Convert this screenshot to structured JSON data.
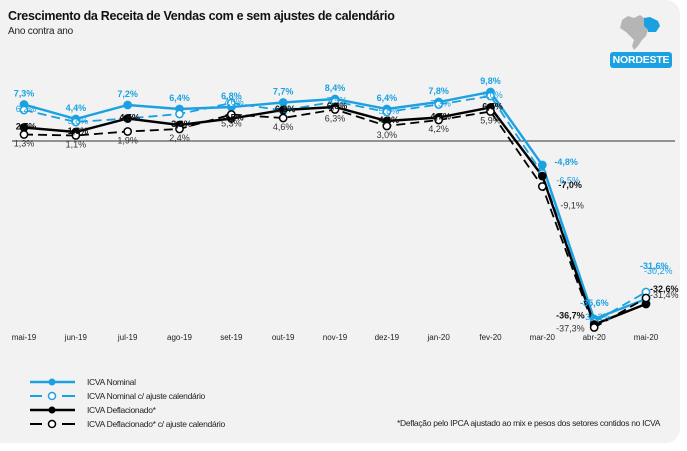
{
  "header": {
    "title": "Crescimento da Receita de Vendas com e sem ajustes de calendário",
    "subtitle": "Ano contra ano",
    "region_badge": "NORDESTE",
    "map_icon": "brazil-map-icon"
  },
  "colors": {
    "nominal": "#1ba1e2",
    "deflated": "#000000",
    "panel_bg": "#f2f2f2",
    "badge_bg": "#1ba1e2",
    "map_gray": "#b5b5b5"
  },
  "chart_data": {
    "type": "line",
    "title": "Crescimento da Receita de Vendas com e sem ajustes de calendário",
    "subtitle": "Ano contra ano",
    "xlabel": "",
    "ylabel": "",
    "grid": false,
    "zero_line": true,
    "legend_placement": "bottom-left",
    "ylim": [
      -40,
      12
    ],
    "categories": [
      "mai-19",
      "jun-19",
      "jul-19",
      "ago-19",
      "set-19",
      "out-19",
      "nov-19",
      "dez-19",
      "jan-20",
      "fev-20",
      "mar-20",
      "abr-20",
      "mai-20"
    ],
    "series": [
      {
        "name": "ICVA Nominal",
        "style": "solid-filled-marker",
        "color": "#1ba1e2",
        "values": [
          7.3,
          4.4,
          7.2,
          6.4,
          6.8,
          7.7,
          8.4,
          6.4,
          7.8,
          9.8,
          -4.8,
          -35.6,
          -31.6
        ],
        "labels": [
          "7,3%",
          "4,4%",
          "7,2%",
          "6,4%",
          "6,8%",
          "7,7%",
          "8,4%",
          "6,4%",
          "7,8%",
          "9,8%",
          "-4,8%",
          "-35,6%",
          "-31,6%"
        ]
      },
      {
        "name": "ICVA Nominal c/ ajuste calendário",
        "style": "dashed-open-marker",
        "color": "#1ba1e2",
        "values": [
          6.2,
          3.8,
          4.5,
          5.4,
          7.6,
          6.1,
          7.9,
          5.8,
          7.3,
          9.0,
          -6.5,
          -36.2,
          -30.2
        ],
        "labels": [
          "6,2%",
          "3,8%",
          "4,5%",
          "",
          "7,6%",
          "6,1%",
          "7,9%",
          "5,8%",
          "7,3%",
          "9,0%",
          "-6,5%",
          "-36,2%",
          "-30,2%"
        ]
      },
      {
        "name": "ICVA Deflacionado*",
        "style": "solid-filled-marker",
        "color": "#000000",
        "values": [
          2.7,
          1.8,
          4.5,
          3.2,
          4.5,
          6.2,
          6.8,
          4.0,
          4.7,
          6.7,
          -7.0,
          -36.7,
          -32.6
        ],
        "labels": [
          "2,7%",
          "1,8%",
          "4,5%",
          "3,2%",
          "4,5%",
          "6,2%",
          "6,8%",
          "4,0%",
          "4,7%",
          "6,7%",
          "-7,0%",
          "-36,7%",
          "-32,6%"
        ]
      },
      {
        "name": "ICVA Deflacionado* c/ ajuste calendário",
        "style": "dashed-open-marker",
        "color": "#000000",
        "values": [
          1.3,
          1.1,
          1.9,
          2.4,
          5.3,
          4.6,
          6.3,
          3.0,
          4.2,
          5.9,
          -9.1,
          -37.3,
          -31.4
        ],
        "labels": [
          "1,3%",
          "1,1%",
          "1,9%",
          "2,4%",
          "5,3%",
          "4,6%",
          "6,3%",
          "3,0%",
          "4,2%",
          "5,9%",
          "-9,1%",
          "-37,3%",
          "-31,4%"
        ]
      }
    ]
  },
  "legend": [
    {
      "label": "ICVA Nominal"
    },
    {
      "label": "ICVA Nominal c/ ajuste calendário"
    },
    {
      "label": "ICVA Deflacionado*"
    },
    {
      "label": "ICVA Deflacionado*  c/ ajuste  calendário"
    }
  ],
  "footnote": "*Deflação pelo IPCA ajustado ao mix e pesos dos setores contidos no ICVA"
}
